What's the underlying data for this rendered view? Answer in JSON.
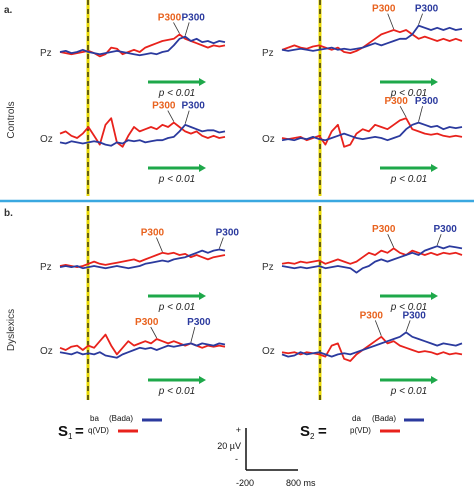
{
  "sections": [
    {
      "label": "a.",
      "group": "Controls",
      "panels": [
        {
          "column": 1,
          "channel": "Pz",
          "red": [
            0,
            -0.5,
            -1,
            -0.5,
            0,
            0.5,
            -0.5,
            -2,
            -1,
            2,
            1.5,
            -1,
            0,
            1,
            0,
            2,
            3,
            4,
            5,
            5.5,
            6,
            8,
            6,
            5,
            4,
            3,
            2,
            3,
            2.5,
            3
          ],
          "blue": [
            0,
            0.5,
            -0.5,
            0,
            1,
            0,
            -0.5,
            -1,
            -0.5,
            0,
            0.5,
            0,
            -0.5,
            -1,
            -1.5,
            -1,
            -0.5,
            -1,
            0,
            0.5,
            3,
            6,
            7,
            5,
            6,
            4.5,
            5,
            4,
            5,
            4.5
          ]
        },
        {
          "column": 2,
          "channel": "Pz",
          "red": [
            1,
            2,
            3,
            2,
            1.5,
            2.5,
            3,
            2,
            1,
            2,
            0,
            -0.5,
            0.5,
            2,
            4,
            6,
            8,
            9,
            10,
            9,
            10,
            8,
            6,
            7,
            6,
            5,
            6,
            5,
            6,
            5
          ],
          "blue": [
            1,
            0.5,
            1,
            1.5,
            1,
            0.5,
            1,
            1.5,
            2,
            1,
            1.5,
            1,
            1.5,
            2,
            3,
            4,
            3,
            4,
            5,
            6,
            6,
            8,
            12,
            11,
            10,
            11,
            10,
            11,
            10,
            10.5
          ]
        },
        {
          "column": 1,
          "channel": "Oz",
          "red": [
            2,
            3,
            1,
            0,
            2,
            5,
            1,
            -3,
            6,
            9,
            -2,
            -4,
            1,
            5,
            3,
            4,
            5,
            4,
            6,
            5,
            7,
            5,
            3,
            2,
            3,
            1,
            0,
            1,
            0,
            0.5
          ],
          "blue": [
            -2,
            -2.5,
            -1.5,
            -2,
            -2.5,
            -2,
            -1.5,
            -2,
            -3,
            -3.5,
            -2,
            -2.5,
            -1,
            -1.5,
            -1,
            -2,
            -1.5,
            -1,
            -1,
            0,
            0.5,
            3,
            6,
            5,
            4,
            3,
            3.5,
            3.5,
            2.5,
            3
          ]
        },
        {
          "column": 2,
          "channel": "Oz",
          "red": [
            0,
            -0.5,
            0,
            0.5,
            -1,
            0,
            1,
            -3,
            3,
            6,
            -4,
            -3,
            2,
            4,
            3,
            6,
            5,
            4,
            6,
            8,
            9,
            4,
            3,
            2,
            1.5,
            2,
            1,
            0.5,
            1,
            0.5
          ],
          "blue": [
            -1,
            -0.5,
            -1,
            0,
            -0.5,
            0.5,
            -0.5,
            -1,
            0,
            1,
            2,
            1,
            0,
            -0.5,
            0,
            0.5,
            0,
            -1,
            0,
            1,
            4,
            6,
            7,
            6,
            5,
            5.5,
            4,
            5,
            4.5,
            5
          ]
        }
      ]
    },
    {
      "label": "b.",
      "group": "Dyslexics",
      "panels": [
        {
          "column": 1,
          "channel": "Pz",
          "red": [
            0,
            0.5,
            0,
            -0.5,
            0,
            1,
            2,
            1,
            0.5,
            1,
            1.5,
            2,
            2.5,
            3,
            2,
            3,
            4,
            5,
            6,
            5.5,
            6,
            5,
            5.5,
            4,
            5,
            4,
            3,
            4,
            4.5,
            5
          ],
          "blue": [
            -0.5,
            0,
            -0.5,
            0,
            -1,
            -0.5,
            0,
            -0.5,
            -1,
            -0.5,
            0,
            -0.5,
            -1,
            -0.5,
            0,
            1,
            1.5,
            2,
            2.5,
            2,
            3,
            3.5,
            4,
            5,
            6,
            7,
            6,
            7,
            7.5,
            7
          ]
        },
        {
          "column": 2,
          "channel": "Pz",
          "red": [
            1,
            1.5,
            1,
            2,
            1.5,
            2,
            2.5,
            1,
            2,
            3,
            2,
            1,
            2,
            4,
            6,
            5,
            7,
            6,
            8,
            6,
            5,
            7,
            6,
            5,
            6,
            5,
            6,
            5.5,
            6,
            5
          ],
          "blue": [
            0,
            -0.5,
            -1,
            -0.5,
            -1,
            -0.5,
            0,
            -1,
            -0.5,
            0,
            -0.5,
            -1,
            -3,
            -1,
            0,
            2,
            3,
            2,
            3,
            4,
            5,
            6,
            5,
            7,
            8,
            9,
            8,
            9,
            8.5,
            8
          ]
        },
        {
          "column": 1,
          "channel": "Oz",
          "red": [
            1,
            0,
            1.5,
            2,
            0,
            2,
            1,
            4,
            7,
            2,
            -2,
            1,
            4,
            2,
            3,
            4,
            3,
            5,
            4,
            3,
            4,
            3,
            2,
            3,
            2,
            1,
            2,
            1.5,
            2,
            1.5
          ],
          "blue": [
            -1,
            -1.5,
            -2,
            -1,
            -2,
            -1.5,
            -2,
            -1,
            -2.5,
            -3,
            -3.5,
            -2,
            -1,
            0,
            1,
            0.5,
            1,
            0,
            1,
            2,
            1.5,
            2,
            2.5,
            3,
            2,
            3,
            2.5,
            2,
            3,
            2.5
          ]
        },
        {
          "column": 2,
          "channel": "Oz",
          "red": [
            -1,
            -1.5,
            -1,
            -2,
            -1,
            -1.5,
            -2,
            -3,
            2,
            3,
            -4,
            -5,
            -2,
            0,
            2,
            4,
            6,
            3,
            4,
            2,
            1,
            0,
            -1,
            -0.5,
            -1,
            -2,
            -1,
            -2,
            -1.5,
            -2
          ],
          "blue": [
            -2,
            -3,
            -2.5,
            -1,
            -2,
            -1.5,
            -1,
            -2,
            -3,
            -2,
            -1.5,
            -2,
            -1,
            0,
            1,
            2,
            3,
            4,
            5,
            6,
            8,
            6,
            5,
            4,
            3,
            2,
            3,
            2.5,
            2,
            3
          ]
        }
      ]
    }
  ],
  "labels": {
    "p300_red": "P300",
    "p300_blue": "P300",
    "pvalue": "p < 0.01"
  },
  "legend": {
    "s1": {
      "symbol": "S",
      "sub": "1",
      "equals": "=",
      "line1": "ba",
      "line1b": "(Bada)",
      "line2": "q(VD)"
    },
    "s2": {
      "symbol": "S",
      "sub": "2",
      "equals": "=",
      "line1": "da",
      "line1b": "(Bada)",
      "line2": "p(VD)"
    }
  },
  "scale_bar": {
    "plus": "+",
    "amplitude": "20 µV",
    "minus": "-",
    "time_start": "-200",
    "time_end": "800 ms"
  },
  "colors": {
    "red": "#e8221c",
    "blue": "#2b3a9e",
    "green": "#1ea84a",
    "orange": "#e8621e",
    "divider": "#3aa8e0",
    "onset": "#e8d800"
  },
  "chart_data": {
    "type": "line",
    "title": "",
    "xlabel": "",
    "ylabel": "",
    "x_range_ms": [
      -200,
      800
    ],
    "scale": {
      "amplitude_uV": 20,
      "time_ms": [
        -200,
        800
      ]
    },
    "series": [
      {
        "name": "S1 ba (Bada)",
        "color": "red"
      },
      {
        "name": "S1 q(VD)",
        "color": "blue"
      },
      {
        "name": "S2 da (Bada)",
        "color": "red"
      },
      {
        "name": "S2 p(VD)",
        "color": "blue"
      }
    ],
    "annotations": [
      "P300",
      "p < 0.01"
    ]
  }
}
